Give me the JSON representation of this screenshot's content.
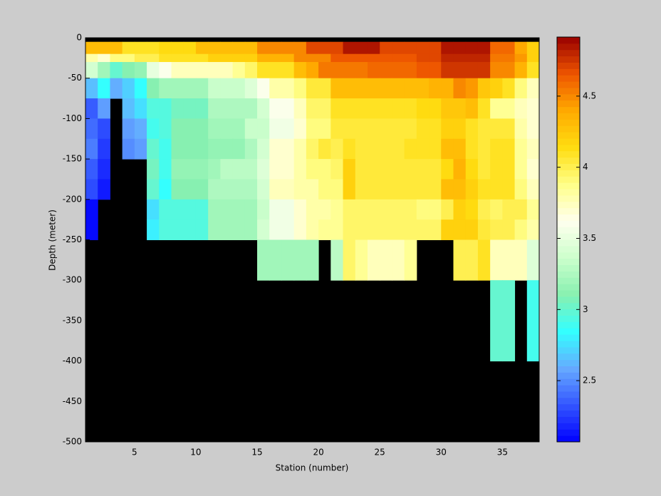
{
  "chart_data": {
    "type": "heatmap",
    "x_label": "Station (number)",
    "y_label": "Depth (meter)",
    "x": [
      1,
      2,
      3,
      4,
      5,
      6,
      7,
      8,
      9,
      10,
      11,
      12,
      13,
      14,
      15,
      16,
      17,
      18,
      19,
      20,
      21,
      22,
      23,
      24,
      25,
      26,
      27,
      28,
      29,
      30,
      31,
      32,
      33,
      34,
      35,
      36,
      37,
      38
    ],
    "y": [
      0,
      -5,
      -20,
      -30,
      -50,
      -75,
      -100,
      -125,
      -150,
      -175,
      -200,
      -225,
      -250,
      -300,
      -400,
      -500
    ],
    "xlim": [
      1,
      38
    ],
    "xticks": [
      5,
      10,
      15,
      20,
      25,
      30,
      35
    ],
    "ylim": [
      -500,
      0
    ],
    "yticks": [
      -500,
      -450,
      -400,
      -350,
      -300,
      -250,
      -200,
      -150,
      -100,
      -50,
      0
    ],
    "background": "#000000",
    "colormap": [
      "#0000ff",
      "#3355ff",
      "#66aaff",
      "#33ffff",
      "#88f0b0",
      "#ccffcc",
      "#ffffee",
      "#ffff88",
      "#ffdd11",
      "#ffaa00",
      "#ee5500",
      "#990000"
    ],
    "clim": [
      2.07,
      4.915
    ],
    "colorbar": {
      "ticks": [
        2.5,
        3,
        3.5,
        4,
        4.5
      ]
    },
    "z": [
      [
        null,
        null,
        null,
        null,
        null,
        null,
        null,
        null,
        null,
        null,
        null,
        null,
        null,
        null,
        null,
        null,
        null,
        null,
        null,
        null,
        null,
        null,
        null,
        null,
        null,
        null,
        null,
        null,
        null,
        null,
        null,
        null,
        null,
        null,
        null,
        null,
        null
      ],
      [
        4.3,
        4.3,
        4.3,
        4.1,
        4.1,
        4.1,
        4.15,
        4.15,
        4.15,
        4.3,
        4.3,
        4.3,
        4.3,
        4.3,
        4.5,
        4.5,
        4.5,
        4.5,
        4.7,
        4.7,
        4.7,
        4.85,
        4.85,
        4.85,
        4.7,
        4.7,
        4.7,
        4.7,
        4.7,
        4.85,
        4.85,
        4.85,
        4.85,
        4.6,
        4.6,
        4.4,
        4.2
      ],
      [
        3.8,
        3.7,
        3.9,
        3.9,
        4.0,
        4.0,
        4.1,
        4.1,
        4.1,
        4.1,
        4.2,
        4.2,
        4.2,
        4.2,
        4.35,
        4.35,
        4.35,
        4.5,
        4.5,
        4.5,
        4.65,
        4.65,
        4.65,
        4.65,
        4.65,
        4.65,
        4.65,
        4.7,
        4.7,
        4.8,
        4.8,
        4.8,
        4.8,
        4.55,
        4.55,
        4.45,
        4.2
      ],
      [
        3.4,
        3.2,
        3.0,
        3.1,
        3.15,
        3.5,
        3.6,
        3.75,
        3.75,
        3.75,
        3.75,
        3.75,
        3.85,
        3.95,
        4.1,
        4.1,
        4.1,
        4.3,
        4.4,
        4.55,
        4.55,
        4.55,
        4.55,
        4.6,
        4.6,
        4.6,
        4.6,
        4.65,
        4.65,
        4.75,
        4.75,
        4.75,
        4.75,
        4.5,
        4.5,
        4.35,
        4.1
      ],
      [
        2.65,
        2.85,
        2.6,
        2.7,
        2.85,
        3.1,
        3.2,
        3.2,
        3.2,
        3.2,
        3.35,
        3.35,
        3.35,
        3.45,
        3.6,
        3.8,
        3.8,
        3.9,
        4.05,
        4.05,
        4.3,
        4.3,
        4.3,
        4.3,
        4.3,
        4.3,
        4.3,
        4.3,
        4.35,
        4.35,
        4.5,
        4.45,
        4.25,
        4.2,
        4.1,
        3.9,
        3.75
      ],
      [
        2.35,
        2.55,
        null,
        2.65,
        2.75,
        2.95,
        2.95,
        3.05,
        3.05,
        3.05,
        3.25,
        3.25,
        3.25,
        3.25,
        3.4,
        3.6,
        3.6,
        3.75,
        3.95,
        3.95,
        4.1,
        4.1,
        4.1,
        4.1,
        4.1,
        4.1,
        4.1,
        4.15,
        4.15,
        4.25,
        4.25,
        4.3,
        4.1,
        3.85,
        3.85,
        3.75,
        3.7
      ],
      [
        2.4,
        2.3,
        null,
        2.55,
        2.6,
        2.9,
        2.95,
        3.1,
        3.1,
        3.1,
        3.2,
        3.2,
        3.2,
        3.35,
        3.35,
        3.55,
        3.55,
        3.7,
        3.9,
        3.9,
        4.05,
        4.05,
        4.05,
        4.05,
        4.05,
        4.05,
        4.05,
        4.1,
        4.1,
        4.2,
        4.2,
        4.1,
        4.05,
        4.05,
        4.05,
        3.8,
        3.7
      ],
      [
        2.45,
        2.25,
        null,
        2.5,
        2.55,
        3.0,
        2.9,
        3.1,
        3.1,
        3.1,
        3.15,
        3.15,
        3.15,
        3.25,
        3.4,
        3.7,
        3.7,
        3.8,
        3.95,
        4.05,
        4.0,
        4.1,
        4.05,
        4.05,
        4.05,
        4.05,
        4.1,
        4.1,
        4.1,
        4.3,
        4.3,
        4.1,
        4.05,
        4.1,
        4.1,
        3.85,
        3.75
      ],
      [
        2.35,
        2.2,
        null,
        null,
        null,
        3.05,
        2.9,
        3.15,
        3.15,
        3.15,
        3.2,
        3.3,
        3.3,
        3.3,
        3.45,
        3.7,
        3.7,
        3.8,
        3.9,
        3.9,
        3.95,
        4.2,
        4.05,
        4.05,
        4.05,
        4.05,
        4.05,
        4.05,
        4.05,
        4.15,
        4.35,
        4.15,
        4.05,
        4.1,
        4.1,
        3.85,
        3.7
      ],
      [
        2.3,
        2.15,
        null,
        null,
        null,
        3.0,
        2.85,
        3.1,
        3.1,
        3.1,
        3.25,
        3.25,
        3.25,
        3.25,
        3.4,
        3.75,
        3.75,
        3.8,
        3.8,
        3.9,
        3.9,
        4.2,
        4.05,
        4.05,
        4.05,
        4.05,
        4.05,
        4.05,
        4.05,
        4.3,
        4.3,
        4.2,
        4.1,
        4.1,
        4.1,
        3.9,
        3.75
      ],
      [
        2.1,
        null,
        null,
        null,
        null,
        2.75,
        2.95,
        2.95,
        2.95,
        2.95,
        3.2,
        3.2,
        3.2,
        3.2,
        3.35,
        3.55,
        3.55,
        3.7,
        3.8,
        3.8,
        3.85,
        3.95,
        3.95,
        3.95,
        3.95,
        3.95,
        3.95,
        3.9,
        3.9,
        4.0,
        4.2,
        4.15,
        4.0,
        3.95,
        4.0,
        4.0,
        3.85
      ],
      [
        2.1,
        null,
        null,
        null,
        null,
        2.8,
        2.95,
        2.95,
        2.95,
        2.95,
        3.2,
        3.2,
        3.2,
        3.2,
        3.4,
        3.55,
        3.55,
        3.7,
        3.8,
        3.85,
        3.85,
        3.95,
        3.95,
        3.95,
        3.95,
        3.95,
        3.95,
        3.95,
        3.95,
        4.2,
        4.2,
        4.2,
        4.05,
        4.0,
        4.0,
        3.9,
        3.8
      ],
      [
        null,
        null,
        null,
        null,
        null,
        null,
        null,
        null,
        null,
        null,
        null,
        null,
        null,
        null,
        3.2,
        3.2,
        3.2,
        3.2,
        3.2,
        null,
        3.3,
        3.95,
        3.85,
        3.75,
        3.75,
        3.75,
        3.85,
        null,
        null,
        null,
        4.0,
        4.0,
        4.1,
        3.75,
        3.75,
        3.75,
        3.45
      ],
      [
        null,
        null,
        null,
        null,
        null,
        null,
        null,
        null,
        null,
        null,
        null,
        null,
        null,
        null,
        null,
        null,
        null,
        null,
        null,
        null,
        null,
        null,
        null,
        null,
        null,
        null,
        null,
        null,
        null,
        null,
        null,
        null,
        null,
        3.0,
        3.0,
        null,
        2.9
      ],
      [
        null,
        null,
        null,
        null,
        null,
        null,
        null,
        null,
        null,
        null,
        null,
        null,
        null,
        null,
        null,
        null,
        null,
        null,
        null,
        null,
        null,
        null,
        null,
        null,
        null,
        null,
        null,
        null,
        null,
        null,
        null,
        null,
        null,
        null,
        null,
        null,
        null
      ]
    ]
  }
}
